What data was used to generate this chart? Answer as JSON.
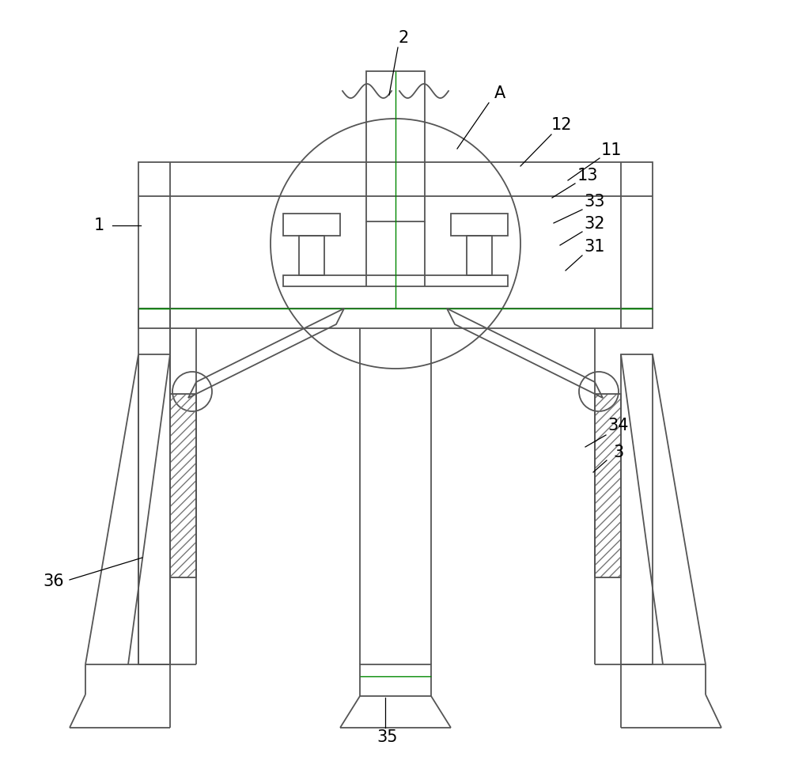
{
  "bg_color": "#ffffff",
  "line_color": "#555555",
  "green_line_color": "#008800",
  "label_color": "#000000",
  "label_fontsize": 15
}
